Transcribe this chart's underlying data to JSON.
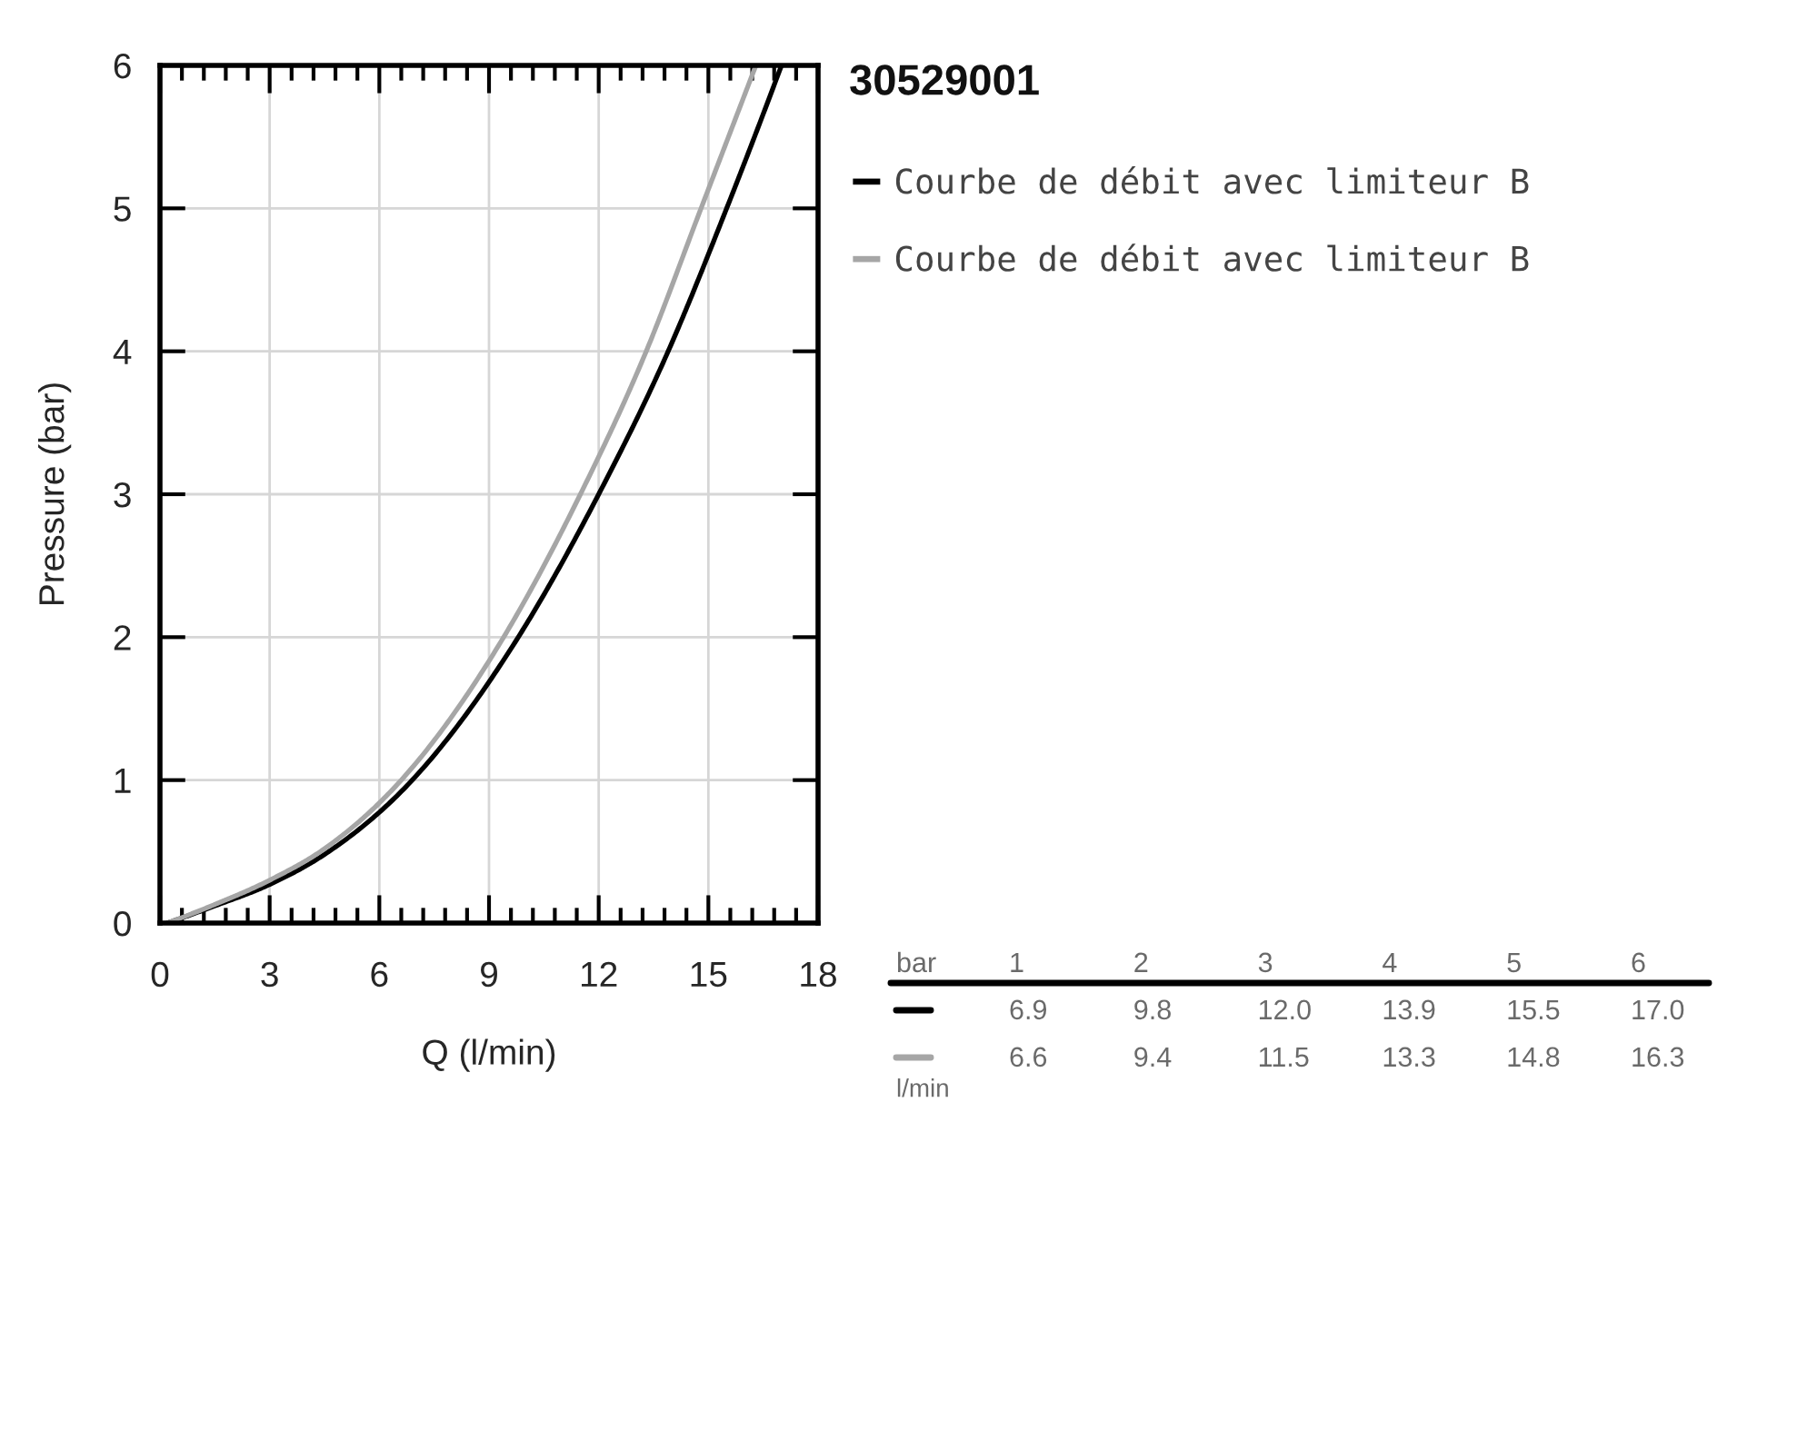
{
  "chart_data": {
    "type": "line",
    "title": "30529001",
    "xlabel": "Q (l/min)",
    "ylabel": "Pressure (bar)",
    "series": [
      {
        "name": "Courbe de débit avec limiteur B",
        "color": "#000000",
        "x": [
          0.2,
          1.5,
          3,
          4.5,
          6.9,
          9.8,
          12.0,
          13.9,
          15.5,
          17.0
        ],
        "values": [
          0,
          0.12,
          0.27,
          0.48,
          1,
          2,
          3,
          4,
          5,
          6
        ]
      },
      {
        "name": "Courbe de débit avec limiteur B",
        "color": "#a6a6a6",
        "x": [
          0.2,
          1.5,
          3,
          4.5,
          6.6,
          9.4,
          11.5,
          13.3,
          14.8,
          16.3
        ],
        "values": [
          0,
          0.13,
          0.3,
          0.52,
          1,
          2,
          3,
          4,
          5,
          6
        ]
      }
    ],
    "xlim": [
      0,
      18
    ],
    "ylim": [
      0,
      6
    ],
    "xticks": [
      0,
      {
        "value": 0.6,
        "label": null
      },
      {
        "value": 1.2,
        "label": null
      },
      {
        "value": 1.8,
        "label": null
      },
      {
        "value": 2.4,
        "label": null
      },
      3,
      {
        "value": 3.6,
        "label": null
      },
      {
        "value": 4.2,
        "label": null
      },
      {
        "value": 4.8,
        "label": null
      },
      {
        "value": 5.4,
        "label": null
      },
      6,
      {
        "value": 6.6,
        "label": null
      },
      {
        "value": 7.2,
        "label": null
      },
      {
        "value": 7.8,
        "label": null
      },
      {
        "value": 8.4,
        "label": null
      },
      9,
      {
        "value": 9.6,
        "label": null
      },
      {
        "value": 10.2,
        "label": null
      },
      {
        "value": 10.8,
        "label": null
      },
      {
        "value": 11.4,
        "label": null
      },
      12,
      {
        "value": 12.6,
        "label": null
      },
      {
        "value": 13.2,
        "label": null
      },
      {
        "value": 13.8,
        "label": null
      },
      {
        "value": 14.4,
        "label": null
      },
      15,
      {
        "value": 15.6,
        "label": null
      },
      {
        "value": 16.2,
        "label": null
      },
      {
        "value": 16.8,
        "label": null
      },
      {
        "value": 17.4,
        "label": null
      },
      18
    ],
    "yticks": [
      0,
      1,
      2,
      3,
      4,
      5,
      6
    ],
    "grid": true,
    "legend": "right",
    "annotations": [
      "bar",
      "1",
      "2",
      "3",
      "4",
      "5",
      "6",
      "6.9",
      "9.8",
      "12.0",
      "13.9",
      "15.5",
      "17.0",
      "6.6",
      "9.4",
      "11.5",
      "13.3",
      "14.8",
      "16.3",
      "l/min"
    ]
  }
}
